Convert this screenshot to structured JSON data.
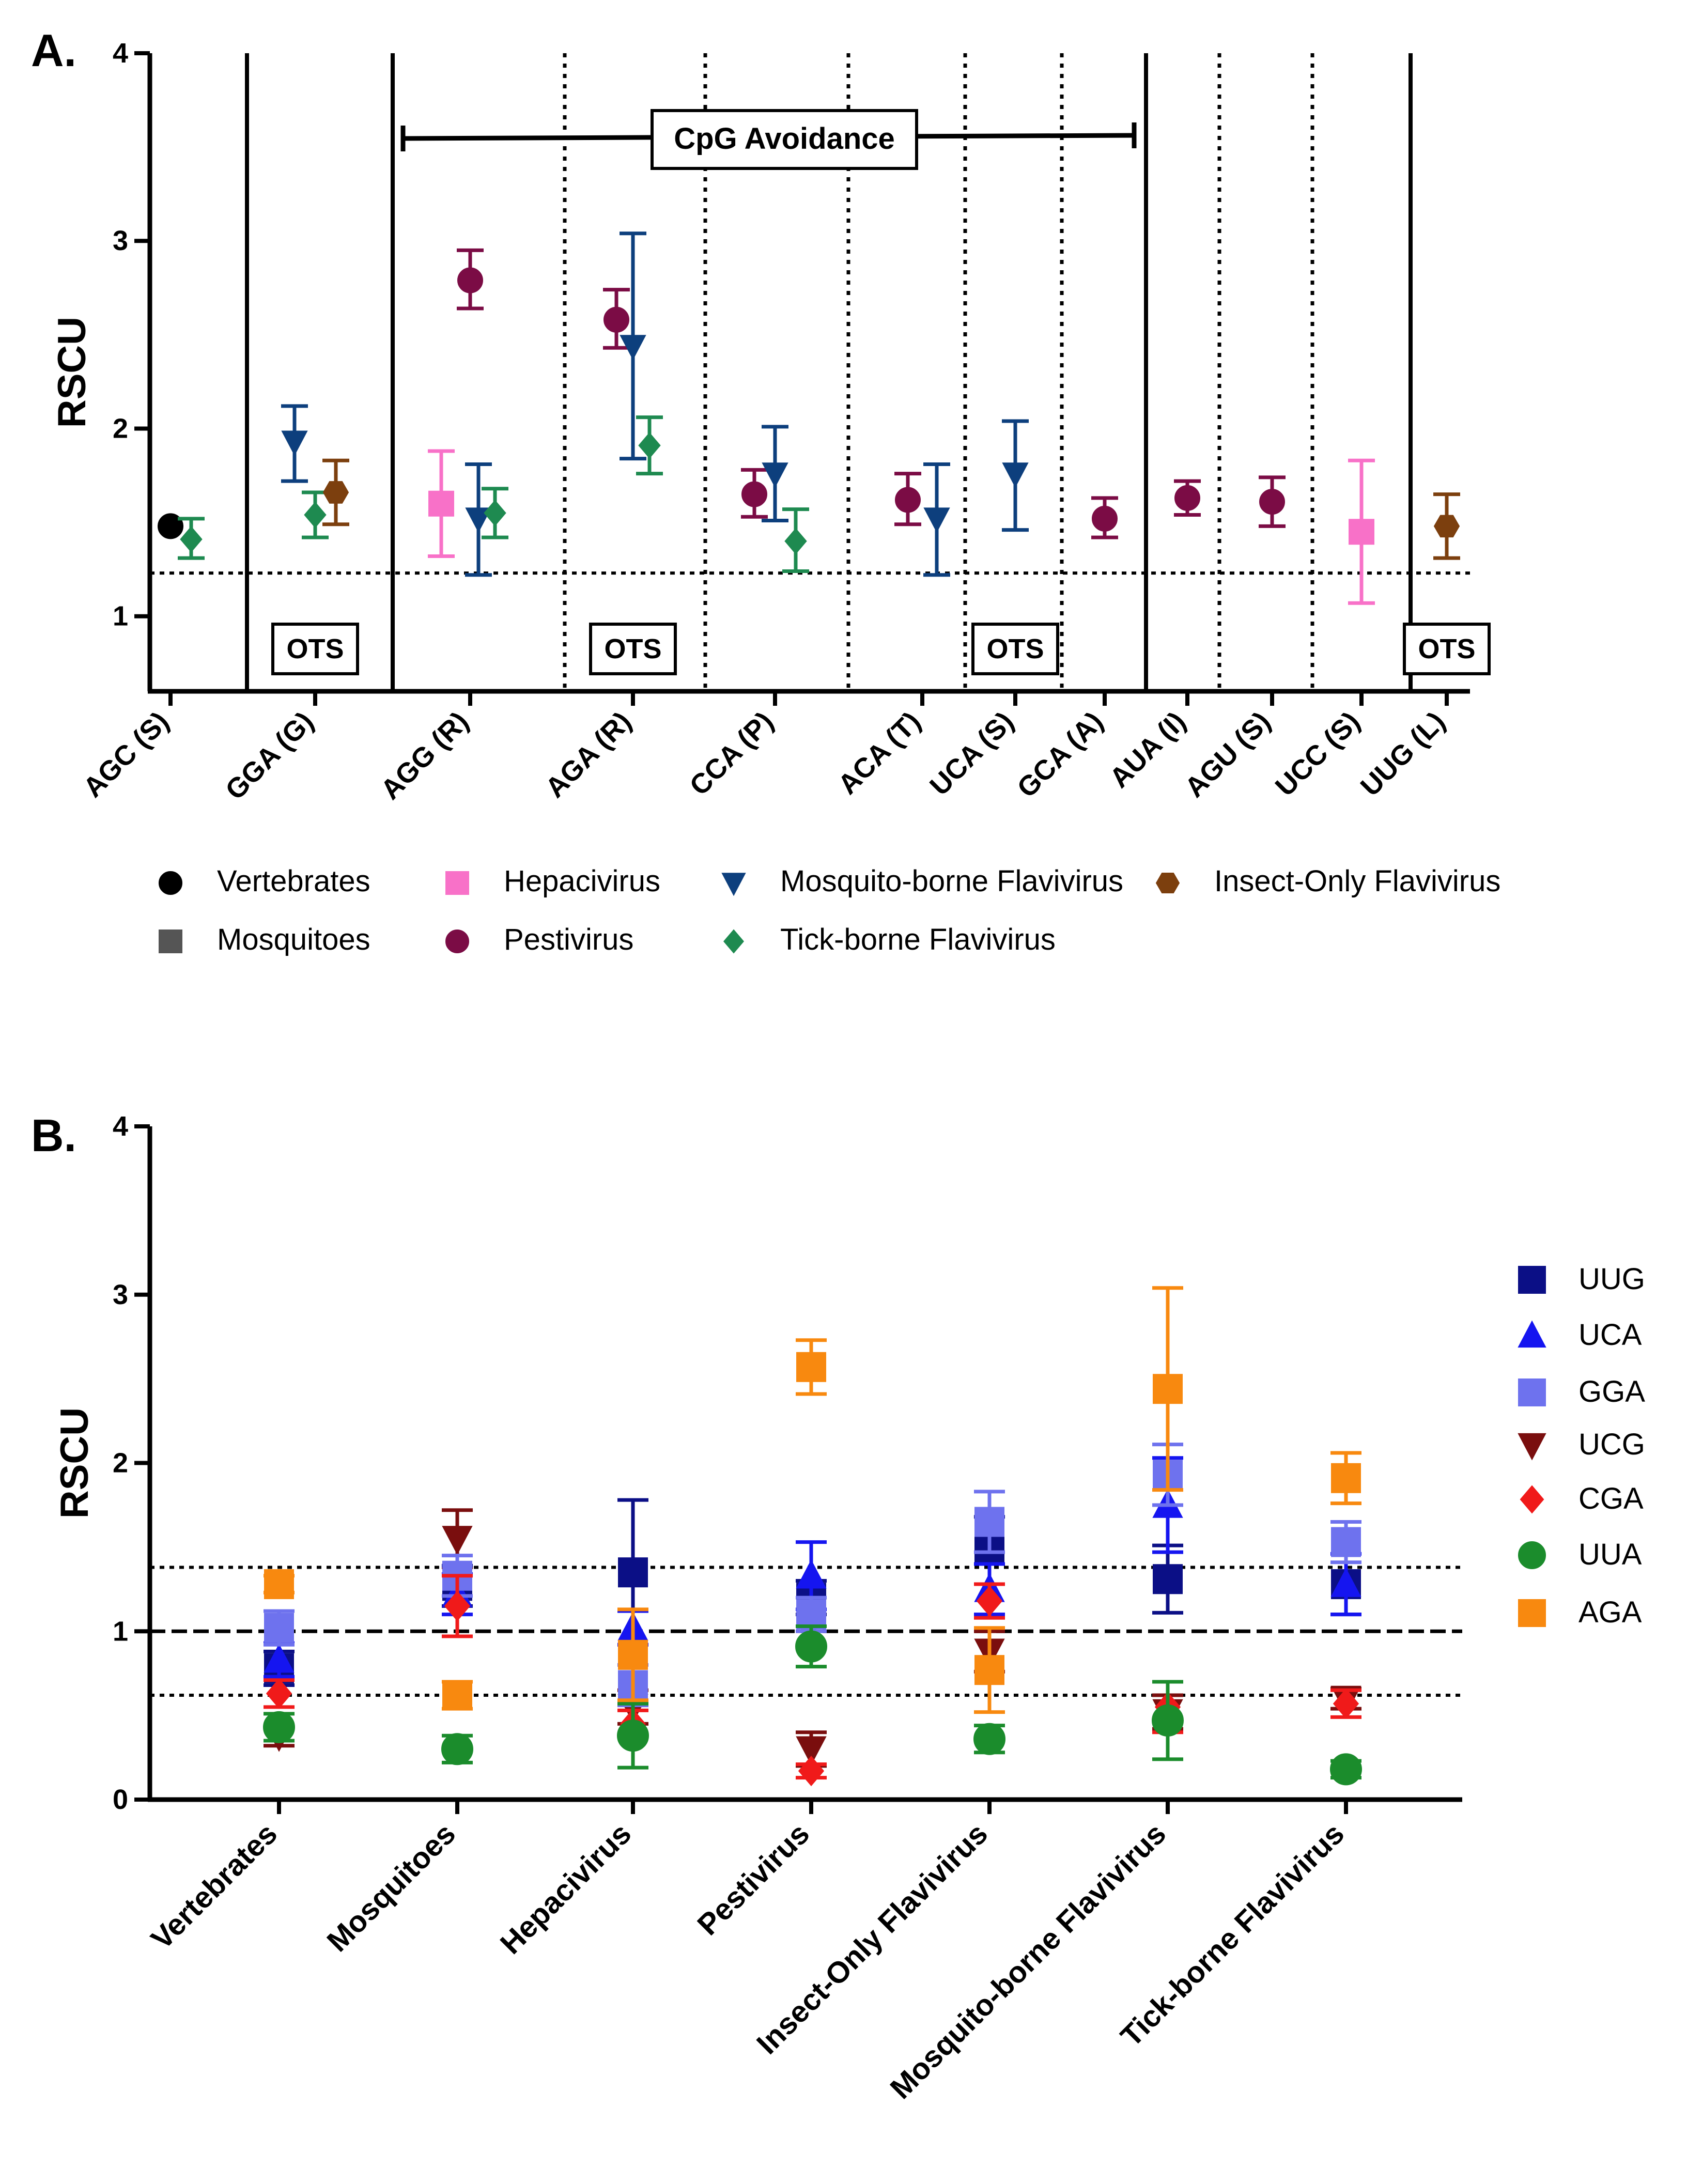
{
  "panels": {
    "A": {
      "label": "A."
    },
    "B": {
      "label": "B."
    }
  },
  "chart_data": [
    {
      "panel": "A",
      "type": "scatter",
      "ylabel": "RSCU",
      "xlabel": "",
      "ylim": [
        0.6,
        4
      ],
      "y_ticks": [
        1,
        2,
        3,
        4
      ],
      "categories": [
        "AGC (S)",
        "GGA (G)",
        "AGG (R)",
        "AGA (R)",
        "CCA (P)",
        "ACA (T)",
        "UCA (S)",
        "GCA (A)",
        "AUA (I)",
        "AGU (S)",
        "UCC (S)",
        "UUG (L)"
      ],
      "reference_line": 1.23,
      "annotation": {
        "text": "CpG Avoidance",
        "from_category": "AGG (R)",
        "to_category": "GCA (A)"
      },
      "ots_label": "OTS",
      "ots_categories": [
        "GGA (G)",
        "AGA (R)",
        "UCA (S)",
        "UUG (L)"
      ],
      "legend": [
        {
          "name": "Vertebrates",
          "color": "#000000",
          "marker": "circle"
        },
        {
          "name": "Mosquitoes",
          "color": "#555555",
          "marker": "square"
        },
        {
          "name": "Hepacivirus",
          "color": "#f871c8",
          "marker": "square"
        },
        {
          "name": "Pestivirus",
          "color": "#7b0c45",
          "marker": "circle"
        },
        {
          "name": "Mosquito-borne Flavivirus",
          "color": "#0d3f7d",
          "marker": "triangle-down"
        },
        {
          "name": "Tick-borne Flavivirus",
          "color": "#1e8a50",
          "marker": "diamond"
        },
        {
          "name": "Insect-Only Flavivirus",
          "color": "#7c3f0e",
          "marker": "hexagon"
        }
      ],
      "points": [
        {
          "category": "AGC (S)",
          "series": "Vertebrates",
          "offset": 0,
          "y": 1.48,
          "err_low": 1.48,
          "err_high": 1.48
        },
        {
          "category": "AGC (S)",
          "series": "Tick-borne Flavivirus",
          "offset": 1,
          "y": 1.41,
          "err_low": 1.31,
          "err_high": 1.52
        },
        {
          "category": "GGA (G)",
          "series": "Mosquito-borne Flavivirus",
          "offset": -1,
          "y": 1.93,
          "err_low": 1.72,
          "err_high": 2.12
        },
        {
          "category": "GGA (G)",
          "series": "Tick-borne Flavivirus",
          "offset": 0,
          "y": 1.54,
          "err_low": 1.42,
          "err_high": 1.66
        },
        {
          "category": "GGA (G)",
          "series": "Insect-Only Flavivirus",
          "offset": 1,
          "y": 1.66,
          "err_low": 1.49,
          "err_high": 1.83
        },
        {
          "category": "AGG (R)",
          "series": "Hepacivirus",
          "offset": -1.4,
          "y": 1.6,
          "err_low": 1.32,
          "err_high": 1.88
        },
        {
          "category": "AGG (R)",
          "series": "Pestivirus",
          "offset": 0,
          "y": 2.79,
          "err_low": 2.64,
          "err_high": 2.95
        },
        {
          "category": "AGG (R)",
          "series": "Mosquito-borne Flavivirus",
          "offset": 0.4,
          "y": 1.52,
          "err_low": 1.22,
          "err_high": 1.81
        },
        {
          "category": "AGG (R)",
          "series": "Tick-borne Flavivirus",
          "offset": 1.2,
          "y": 1.55,
          "err_low": 1.42,
          "err_high": 1.68
        },
        {
          "category": "AGA (R)",
          "series": "Pestivirus",
          "offset": -0.8,
          "y": 2.58,
          "err_low": 2.43,
          "err_high": 2.74
        },
        {
          "category": "AGA (R)",
          "series": "Mosquito-borne Flavivirus",
          "offset": 0,
          "y": 2.44,
          "err_low": 1.84,
          "err_high": 3.04
        },
        {
          "category": "AGA (R)",
          "series": "Tick-borne Flavivirus",
          "offset": 0.8,
          "y": 1.91,
          "err_low": 1.76,
          "err_high": 2.06
        },
        {
          "category": "CCA (P)",
          "series": "Pestivirus",
          "offset": -1,
          "y": 1.65,
          "err_low": 1.53,
          "err_high": 1.78
        },
        {
          "category": "CCA (P)",
          "series": "Mosquito-borne Flavivirus",
          "offset": 0,
          "y": 1.76,
          "err_low": 1.51,
          "err_high": 2.01
        },
        {
          "category": "CCA (P)",
          "series": "Tick-borne Flavivirus",
          "offset": 1,
          "y": 1.4,
          "err_low": 1.24,
          "err_high": 1.57
        },
        {
          "category": "ACA (T)",
          "series": "Pestivirus",
          "offset": -0.7,
          "y": 1.62,
          "err_low": 1.49,
          "err_high": 1.76
        },
        {
          "category": "ACA (T)",
          "series": "Mosquito-borne Flavivirus",
          "offset": 0.7,
          "y": 1.52,
          "err_low": 1.22,
          "err_high": 1.81
        },
        {
          "category": "UCA (S)",
          "series": "Mosquito-borne Flavivirus",
          "offset": 0,
          "y": 1.76,
          "err_low": 1.46,
          "err_high": 2.04
        },
        {
          "category": "GCA (A)",
          "series": "Pestivirus",
          "offset": 0,
          "y": 1.52,
          "err_low": 1.42,
          "err_high": 1.63
        },
        {
          "category": "AUA (I)",
          "series": "Pestivirus",
          "offset": 0,
          "y": 1.63,
          "err_low": 1.54,
          "err_high": 1.72
        },
        {
          "category": "AGU (S)",
          "series": "Pestivirus",
          "offset": 0,
          "y": 1.61,
          "err_low": 1.48,
          "err_high": 1.74
        },
        {
          "category": "UCC (S)",
          "series": "Hepacivirus",
          "offset": 0,
          "y": 1.45,
          "err_low": 1.07,
          "err_high": 1.83
        },
        {
          "category": "UUG (L)",
          "series": "Insect-Only Flavivirus",
          "offset": 0,
          "y": 1.48,
          "err_low": 1.31,
          "err_high": 1.65
        }
      ]
    },
    {
      "panel": "B",
      "type": "scatter",
      "ylabel": "RSCU",
      "xlabel": "",
      "ylim": [
        0,
        4
      ],
      "y_ticks": [
        0,
        1,
        2,
        3,
        4
      ],
      "categories": [
        "Vertebrates",
        "Mosquitoes",
        "Hepacivirus",
        "Pestivirus",
        "Insect-Only Flavivirus",
        "Mosquito-borne Flavivirus",
        "Tick-borne Flavivirus"
      ],
      "reference_lines": {
        "dashed": [
          1.0
        ],
        "dotted": [
          1.38,
          0.62
        ]
      },
      "legend": [
        {
          "name": "UUG",
          "color": "#0b0f86",
          "marker": "square"
        },
        {
          "name": "UCA",
          "color": "#1515f0",
          "marker": "triangle-up"
        },
        {
          "name": "GGA",
          "color": "#6e72ee",
          "marker": "square"
        },
        {
          "name": "UCG",
          "color": "#7a0e0e",
          "marker": "triangle-down"
        },
        {
          "name": "CGA",
          "color": "#f01a1a",
          "marker": "diamond"
        },
        {
          "name": "UUA",
          "color": "#1b8c2c",
          "marker": "circle"
        },
        {
          "name": "AGA",
          "color": "#f8890f",
          "marker": "square"
        }
      ],
      "series": [
        {
          "name": "UCG",
          "values": [
            0.38,
            1.55,
            0.55,
            0.3,
            0.88,
            0.52,
            0.6
          ],
          "err": [
            0.06,
            0.17,
            0.1,
            0.1,
            0.12,
            0.1,
            0.06
          ]
        },
        {
          "name": "UUG",
          "values": [
            0.78,
            1.27,
            1.35,
            1.2,
            1.48,
            1.31,
            1.28
          ],
          "err": [
            0.1,
            0.12,
            0.43,
            0.1,
            0.2,
            0.2,
            0.18
          ]
        },
        {
          "name": "UCA",
          "values": [
            0.83,
            1.22,
            1.02,
            1.33,
            1.25,
            1.75,
            1.28
          ],
          "err": [
            0.1,
            0.12,
            0.1,
            0.2,
            0.15,
            0.28,
            0.18
          ]
        },
        {
          "name": "GGA",
          "values": [
            1.02,
            1.33,
            0.68,
            1.1,
            1.65,
            1.93,
            1.53
          ],
          "err": [
            0.1,
            0.12,
            0.12,
            0.1,
            0.18,
            0.18,
            0.12
          ]
        },
        {
          "name": "CGA",
          "values": [
            0.63,
            1.15,
            0.45,
            0.17,
            1.18,
            0.55,
            0.57
          ],
          "err": [
            0.08,
            0.18,
            0.08,
            0.04,
            0.1,
            0.15,
            0.08
          ]
        },
        {
          "name": "UUA",
          "values": [
            0.43,
            0.3,
            0.38,
            0.91,
            0.36,
            0.47,
            0.18
          ],
          "err": [
            0.08,
            0.08,
            0.19,
            0.12,
            0.08,
            0.23,
            0.05
          ]
        },
        {
          "name": "AGA",
          "values": [
            1.28,
            0.62,
            0.86,
            2.57,
            0.77,
            2.44,
            1.91
          ],
          "err": [
            0.05,
            0.08,
            0.27,
            0.16,
            0.25,
            0.6,
            0.15
          ]
        }
      ]
    }
  ]
}
